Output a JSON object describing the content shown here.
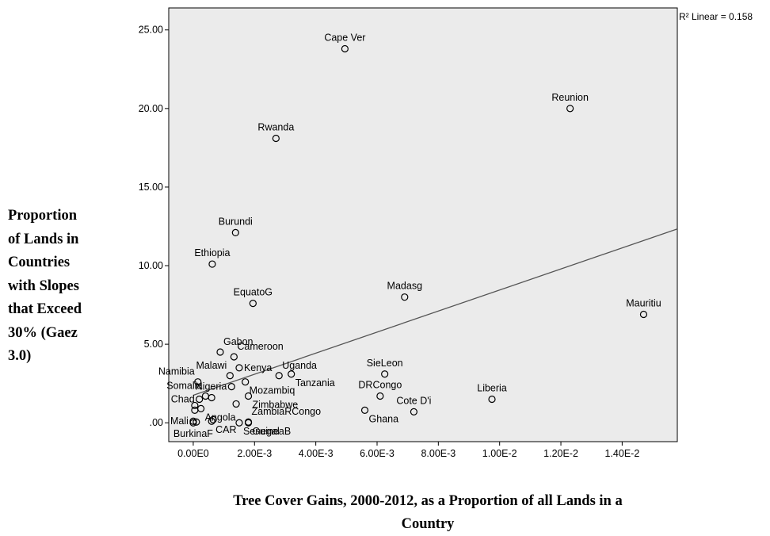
{
  "chart_data": {
    "type": "scatter",
    "ylabel_lines": [
      "Proportion",
      "of Lands in",
      "Countries",
      "with Slopes",
      "that Exceed",
      "30% (Gaez",
      "3.0)"
    ],
    "xlabel_lines": [
      "Tree Cover Gains, 2000-2012, as a Proportion of all Lands in a",
      "Country"
    ],
    "fit_label": "R² Linear = 0.158",
    "xlim": [
      -0.0008,
      0.0158
    ],
    "ylim": [
      -1.2,
      26.4
    ],
    "x_ticks": [
      0,
      0.002,
      0.004,
      0.006,
      0.008,
      0.01,
      0.012,
      0.014
    ],
    "x_tick_labels": [
      "0.00E0",
      "2.00E-3",
      "4.00E-3",
      "6.00E-3",
      "8.00E-3",
      "1.00E-2",
      "1.20E-2",
      "1.40E-2"
    ],
    "y_ticks": [
      0,
      5,
      10,
      15,
      20,
      25
    ],
    "y_tick_labels": [
      ".00",
      "5.00",
      "10.00",
      "15.00",
      "20.00",
      "25.00"
    ],
    "fit_line": {
      "intercept": 1.75,
      "slope": 670
    },
    "points": [
      {
        "x": 0.00495,
        "y": 23.8,
        "label": "Cape Ver",
        "label_pos": "above"
      },
      {
        "x": 0.0123,
        "y": 20.0,
        "label": "Reunion",
        "label_pos": "above"
      },
      {
        "x": 0.0027,
        "y": 18.1,
        "label": "Rwanda",
        "label_pos": "above"
      },
      {
        "x": 0.00138,
        "y": 12.1,
        "label": "Burundi",
        "label_pos": "above"
      },
      {
        "x": 0.00062,
        "y": 10.1,
        "label": "Ethiopia",
        "label_pos": "above"
      },
      {
        "x": 0.00195,
        "y": 7.6,
        "label": "EquatoG",
        "label_pos": "above"
      },
      {
        "x": 0.0069,
        "y": 8.0,
        "label": "Madasg",
        "label_pos": "above"
      },
      {
        "x": 0.0147,
        "y": 6.9,
        "label": "Mauritiu",
        "label_pos": "above"
      },
      {
        "x": 0.00088,
        "y": 4.5,
        "label": "Gabon",
        "label_pos": "above-right"
      },
      {
        "x": 0.00133,
        "y": 4.2,
        "label": "Cameroon",
        "label_pos": "above-right"
      },
      {
        "x": 0.0015,
        "y": 3.5,
        "label": "Kenya",
        "label_pos": "right"
      },
      {
        "x": 0.0012,
        "y": 3.0,
        "label": "Malawi",
        "label_pos": "above-left"
      },
      {
        "x": 0.0028,
        "y": 3.0,
        "label": "Uganda",
        "label_pos": "above-right"
      },
      {
        "x": 0.0032,
        "y": 3.1,
        "label": "Tanzania",
        "label_pos": "below-right"
      },
      {
        "x": 0.00625,
        "y": 3.1,
        "label": "SieLeon",
        "label_pos": "above"
      },
      {
        "x": 0.00015,
        "y": 2.6,
        "label": "Namibia",
        "label_pos": "above-left"
      },
      {
        "x": 0.0017,
        "y": 2.6,
        "label": "Mozambiq",
        "label_pos": "below-right"
      },
      {
        "x": 0.00125,
        "y": 2.3,
        "label": "Nigeria",
        "label_pos": "left"
      },
      {
        "x": 0.0004,
        "y": 1.7,
        "label": "Somalia",
        "label_pos": "above-left"
      },
      {
        "x": 0.0006,
        "y": 1.6,
        "label": "",
        "label_pos": "none"
      },
      {
        "x": 0.0002,
        "y": 1.5,
        "label": "Chad",
        "label_pos": "left"
      },
      {
        "x": 0.0018,
        "y": 1.7,
        "label": "Zimbabwe",
        "label_pos": "below-right"
      },
      {
        "x": 0.0061,
        "y": 1.7,
        "label": "DRCongo",
        "label_pos": "above"
      },
      {
        "x": 0.00975,
        "y": 1.5,
        "label": "Liberia",
        "label_pos": "above"
      },
      {
        "x": 0.0014,
        "y": 1.2,
        "label": "",
        "label_pos": "none"
      },
      {
        "x": 5e-05,
        "y": 1.1,
        "label": "",
        "label_pos": "none"
      },
      {
        "x": 0.00025,
        "y": 0.9,
        "label": "Angola",
        "label_pos": "below-right"
      },
      {
        "x": 5e-05,
        "y": 0.8,
        "label": "",
        "label_pos": "none"
      },
      {
        "x": 0.0056,
        "y": 0.8,
        "label": "Ghana",
        "label_pos": "below-right"
      },
      {
        "x": 0.0072,
        "y": 0.7,
        "label": "Cote D'i",
        "label_pos": "above"
      },
      {
        "x": 0.0018,
        "y": 0.05,
        "label": "ZambiaRCongo",
        "label_pos": "above-right"
      },
      {
        "x": 0.0018,
        "y": 0.0,
        "label": "GuineaB",
        "label_pos": "below-right"
      },
      {
        "x": 0.00065,
        "y": 0.2,
        "label": "",
        "label_pos": "none"
      },
      {
        "x": 0.0,
        "y": 0.1,
        "label": "Mali",
        "label_pos": "left"
      },
      {
        "x": 0.0001,
        "y": 0.05,
        "label": "",
        "label_pos": "none"
      },
      {
        "x": 0.0,
        "y": 0.0,
        "label": "BurkinaF",
        "label_pos": "below"
      },
      {
        "x": 0.0006,
        "y": 0.1,
        "label": "CAR",
        "label_pos": "below-right"
      },
      {
        "x": 0.0015,
        "y": 0.0,
        "label": "Senegal",
        "label_pos": "below-right"
      }
    ],
    "colors": {
      "plot_background": "#ebebeb",
      "axis": "#000000",
      "marker": "#000000",
      "fit_line": "#555555"
    },
    "grid": false,
    "legend": "none"
  }
}
